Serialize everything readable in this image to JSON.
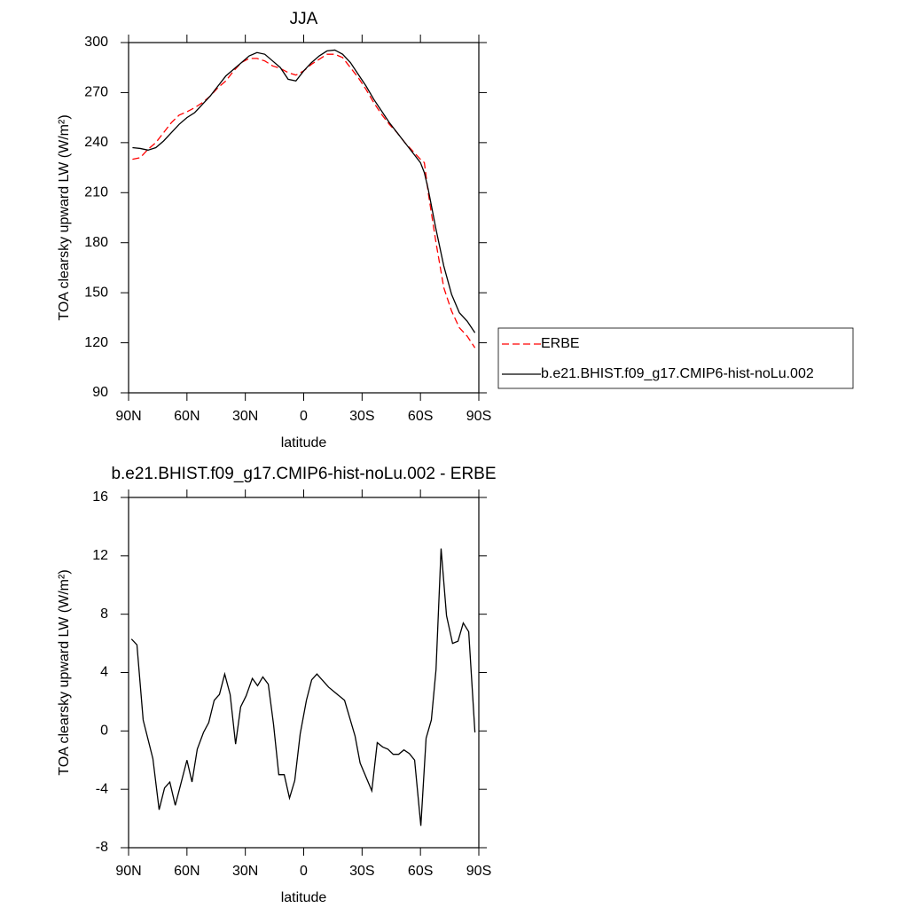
{
  "chart_data": [
    {
      "type": "line",
      "title": "JJA",
      "x_label": "latitude",
      "y_label": "TOA clearsky upward LW (W/m²)",
      "xlim": [
        90,
        -90
      ],
      "xticks": [
        {
          "value": 90,
          "label": "90N"
        },
        {
          "value": 60,
          "label": "60N"
        },
        {
          "value": 30,
          "label": "30N"
        },
        0,
        {
          "value": -30,
          "label": "30S"
        },
        {
          "value": -60,
          "label": "60S"
        },
        {
          "value": -90,
          "label": "90S"
        }
      ],
      "ylim": [
        90,
        300
      ],
      "yticks": [
        90,
        120,
        150,
        180,
        210,
        240,
        270,
        300
      ],
      "legend": "right",
      "x": [
        88,
        84,
        80,
        76,
        72,
        68,
        64,
        60,
        56,
        52,
        48,
        44,
        40,
        36,
        32,
        28,
        24,
        20,
        16,
        12,
        8,
        4,
        0,
        -4,
        -8,
        -12,
        -16,
        -20,
        -24,
        -28,
        -32,
        -36,
        -40,
        -44,
        -48,
        -52,
        -56,
        -60,
        -62,
        -64,
        -68,
        -72,
        -76,
        -80,
        -84,
        -88
      ],
      "series": [
        {
          "name": "ERBE",
          "color": "#ff0000",
          "line_style": "dashed",
          "values": [
            230,
            231,
            236,
            240,
            246,
            252,
            256.5,
            258.5,
            261,
            264,
            268,
            273,
            277,
            283,
            288,
            290.5,
            290.5,
            289,
            286,
            284.5,
            282,
            280.5,
            283,
            287,
            290,
            293,
            293,
            291,
            285,
            279,
            272,
            264,
            257,
            251,
            246,
            240,
            235,
            230,
            228,
            210,
            180,
            153,
            139,
            129,
            124,
            117
          ]
        },
        {
          "name": "b.e21.BHIST.f09_g17.CMIP6-hist-noLu.002",
          "color": "#000000",
          "line_style": "solid",
          "values": [
            237,
            236.5,
            235.5,
            237,
            241,
            246,
            251,
            255,
            258,
            263,
            268,
            274,
            280,
            284,
            288,
            292,
            294,
            293,
            289,
            285,
            278,
            277,
            283,
            288,
            292,
            295,
            295.5,
            293,
            288,
            281,
            274,
            266,
            259,
            252,
            246,
            240,
            234,
            228,
            222,
            212,
            188,
            166,
            149,
            138,
            133,
            126
          ]
        }
      ]
    },
    {
      "type": "line",
      "title": "b.e21.BHIST.f09_g17.CMIP6-hist-noLu.002 - ERBE",
      "x_label": "latitude",
      "y_label": "TOA clearsky upward LW (W/m²)",
      "xlim": [
        90,
        -90
      ],
      "xticks": [
        {
          "value": 90,
          "label": "90N"
        },
        {
          "value": 60,
          "label": "60N"
        },
        {
          "value": 30,
          "label": "30N"
        },
        0,
        {
          "value": -30,
          "label": "30S"
        },
        {
          "value": -60,
          "label": "60S"
        },
        {
          "value": -90,
          "label": "90S"
        }
      ],
      "ylim": [
        -8,
        16
      ],
      "yticks": [
        -8,
        -4,
        0,
        4,
        8,
        12,
        16
      ],
      "x": [
        88.5,
        85.7,
        82.5,
        77.5,
        74.3,
        71.5,
        68.8,
        66,
        60,
        57.4,
        54.7,
        51.5,
        48.8,
        46,
        43.3,
        40.6,
        37.8,
        35,
        32.4,
        29.6,
        26.4,
        23.7,
        21,
        18.2,
        15.5,
        12.8,
        10,
        7.3,
        4.6,
        1.8,
        -1.4,
        -4.1,
        -6.8,
        -12.8,
        -21,
        -26.4,
        -29,
        -35,
        -37.8,
        -40.6,
        -43.3,
        -46,
        -48.8,
        -51.5,
        -54.3,
        -57,
        -60.2,
        -62.9,
        -65.6,
        -68,
        -70.6,
        -73.4,
        -76.5,
        -79.3,
        -82,
        -84.8,
        -88
      ],
      "series": [
        {
          "color": "#000000",
          "line_style": "solid",
          "values": [
            6.3,
            5.9,
            0.75,
            -1.9,
            -5.4,
            -3.9,
            -3.5,
            -5.1,
            -2.0,
            -3.5,
            -1.25,
            -0.1,
            0.57,
            2.1,
            2.5,
            3.9,
            2.5,
            -0.9,
            1.65,
            2.4,
            3.6,
            3.1,
            3.7,
            3.2,
            0.45,
            -3.0,
            -3.0,
            -4.6,
            -3.4,
            -0.2,
            2.1,
            3.5,
            3.9,
            3.0,
            2.1,
            -0.35,
            -2.2,
            -4.1,
            -0.8,
            -1.1,
            -1.25,
            -1.6,
            -1.6,
            -1.3,
            -1.55,
            -2.0,
            -6.5,
            -0.5,
            0.75,
            4.2,
            12.5,
            7.9,
            6.0,
            6.15,
            7.4,
            6.8,
            -0.1
          ]
        }
      ]
    }
  ]
}
